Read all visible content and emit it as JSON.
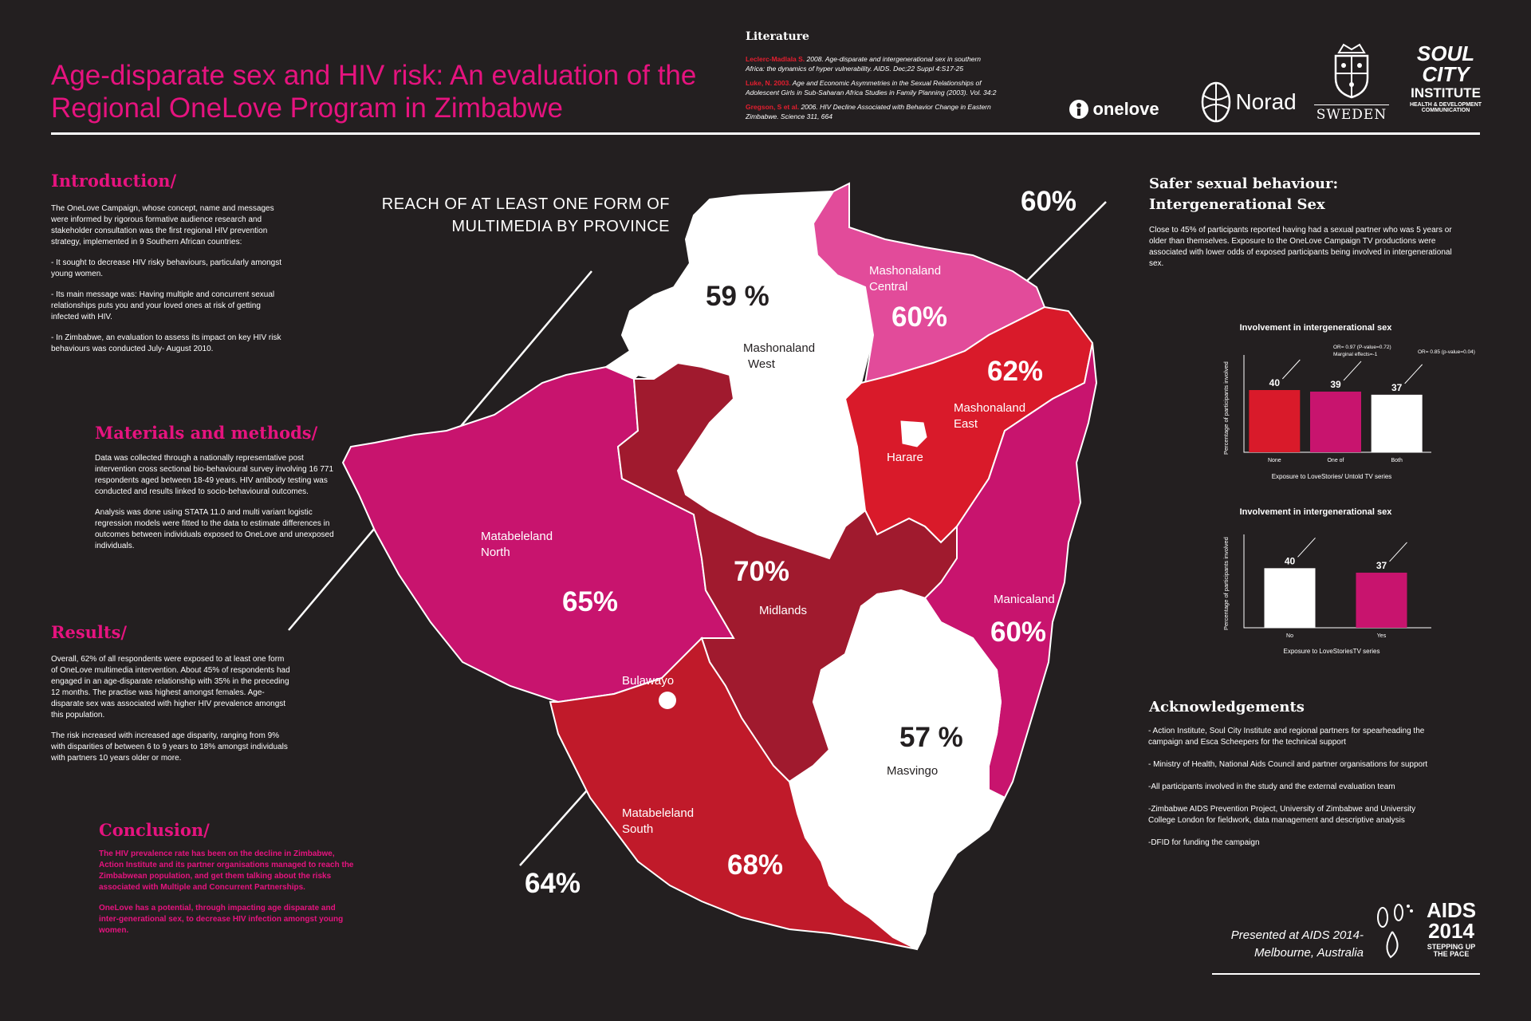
{
  "title": "Age-disparate sex and HIV risk: An evaluation of the Regional OneLove Program in Zimbabwe",
  "literature": {
    "heading": "Literature",
    "items": [
      {
        "author": "Leclerc-Madlala S.",
        "text": " 2008. Age-disparate and intergenerational sex in southern Africa: the dynamics of hyper vulnerability. AIDS. Dec;22 Suppl 4:S17-25"
      },
      {
        "author": "Luke, N. 2003.",
        "text": " Age and Economic Asymmetries in the Sexual Relationships of Adolescent Girls in Sub-Saharan Africa Studies in Family Planning (2003). Vol. 34:2"
      },
      {
        "author": "Gregson, S et al.",
        "text": " 2006. HIV Decline Associated with Behavior Change in Eastern Zimbabwe. Science 311, 664"
      }
    ]
  },
  "logos": {
    "onelove": "onelove",
    "norad": "Norad",
    "sweden": "SWEDEN",
    "soulcity_1": "SOUL",
    "soulcity_2": "CITY",
    "soulcity_3": "INSTITUTE",
    "soulcity_4": "HEALTH & DEVELOPMENT",
    "soulcity_5": "COMMUNICATION",
    "aids_1": "AIDS",
    "aids_2": "2014",
    "aids_3": "STEPPING UP",
    "aids_4": "THE PACE"
  },
  "introduction": {
    "heading": "Introduction/",
    "paragraphs": [
      "The OneLove Campaign, whose concept, name and messages were informed by rigorous formative audience research and stakeholder consultation was the first regional HIV prevention strategy, implemented in 9 Southern African countries:",
      "- It sought to decrease HIV risky behaviours, particularly amongst young women.",
      "- Its main message was: Having multiple and concurrent sexual relationships puts you and your loved ones at risk of getting infected with HIV.",
      "- In Zimbabwe, an evaluation to assess its impact on key HIV risk behaviours was conducted July- August 2010."
    ]
  },
  "methods": {
    "heading": "Materials and methods/",
    "paragraphs": [
      "Data was collected through a nationally representative post intervention cross sectional bio-behavioural survey involving 16 771 respondents aged between 18-49 years. HIV antibody testing was conducted and results linked to socio-behavioural outcomes.",
      " Analysis was done using STATA 11.0 and multi variant logistic regression models were fitted to the data to estimate differences in outcomes between individuals exposed to OneLove and unexposed individuals."
    ]
  },
  "results": {
    "heading": "Results/",
    "paragraphs": [
      "Overall, 62% of all respondents were exposed to at least one form of OneLove multimedia intervention. About 45% of respondents had engaged in an age-disparate relationship with 35% in the preceding 12 months. The practise was highest amongst females. Age-disparate sex was associated with higher HIV prevalence amongst this population.",
      "The risk increased with increased age disparity, ranging from 9% with disparities of between 6 to 9 years to 18% amongst individuals with partners 10 years older or more."
    ]
  },
  "conclusion": {
    "heading": "Conclusion/",
    "paragraphs": [
      "The HIV prevalence rate has been on the decline in Zimbabwe, Action Institute and its partner organisations managed to reach the Zimbabwean population, and get them talking about the risks associated with Multiple and Concurrent Partnerships.",
      "OneLove has a potential, through impacting age disparate and inter-generational sex, to decrease HIV infection amongst young women."
    ]
  },
  "map": {
    "title_line1": "REACH OF AT LEAST ONE FORM OF",
    "title_line2": "MULTIMEDIA BY PROVINCE",
    "callout_top": "60%",
    "callout_bottom": "64%",
    "colors": {
      "white": "#ffffff",
      "pink": "#e24b9a",
      "magenta": "#c8146e",
      "red": "#d91a2a",
      "darkred": "#a01a2e",
      "midred": "#c01a2a"
    },
    "provinces": [
      {
        "name_1": "Mashonaland",
        "name_2": "West",
        "value": "59 %"
      },
      {
        "name_1": "Mashonaland",
        "name_2": "Central",
        "value": "60%"
      },
      {
        "name_1": "Mashonaland",
        "name_2": "East",
        "value": "62%"
      },
      {
        "name_1": "Harare",
        "name_2": "",
        "value": ""
      },
      {
        "name_1": "Matabeleland",
        "name_2": "North",
        "value": "65%"
      },
      {
        "name_1": "Midlands",
        "name_2": "",
        "value": "70%"
      },
      {
        "name_1": "Manicaland",
        "name_2": "",
        "value": "60%"
      },
      {
        "name_1": "Bulawayo",
        "name_2": "",
        "value": ""
      },
      {
        "name_1": "Masvingo",
        "name_2": "",
        "value": "57 %"
      },
      {
        "name_1": "Matabeleland",
        "name_2": "South",
        "value": "68%"
      }
    ]
  },
  "safer": {
    "heading_1": "Safer sexual behaviour:",
    "heading_2": "Intergenerational Sex",
    "text": "Close to 45% of participants reported having had a sexual partner who was 5 years or older than themselves. Exposure to the OneLove Campaign TV productions were associated with lower odds of exposed participants being involved in intergenerational sex."
  },
  "chart_data": [
    {
      "type": "bar",
      "title": "Involvement in intergenerational sex",
      "categories": [
        "None",
        "One of",
        "Both"
      ],
      "values": [
        40,
        39,
        37
      ],
      "colors": [
        "#d91a2a",
        "#c8146e",
        "#ffffff"
      ],
      "xlabel": "Exposure to LoveStories/ Untold TV series",
      "ylabel": "Percentage of participants involved",
      "ylim": [
        0,
        60
      ],
      "annotations": [
        "OR= 0.97 (P-value=0.72)",
        "Marginal effects=-1",
        "OR= 0.85 (p-value=0.04)"
      ]
    },
    {
      "type": "bar",
      "title": "Involvement in intergenerational sex",
      "categories": [
        "No",
        "Yes"
      ],
      "values": [
        40,
        37
      ],
      "colors": [
        "#ffffff",
        "#c8146e"
      ],
      "xlabel": "Exposure to LoveStoriesTV series",
      "ylabel": "Percentage of participants involved",
      "ylim": [
        0,
        60
      ]
    }
  ],
  "acknowledgements": {
    "heading": "Acknowledgements",
    "items": [
      "- Action Institute, Soul City Institute and regional partners for spearheading the campaign and Esca Scheepers for the technical support",
      "- Ministry of Health, National Aids Council and partner organisations for support",
      "-All participants involved in the study and the external evaluation team",
      "-Zimbabwe AIDS Prevention Project, University of Zimbabwe and University College London for fieldwork, data management and descriptive analysis",
      "-DFID for funding the campaign"
    ]
  },
  "presented": {
    "line1": "Presented at AIDS 2014-",
    "line2": "Melbourne, Australia"
  }
}
